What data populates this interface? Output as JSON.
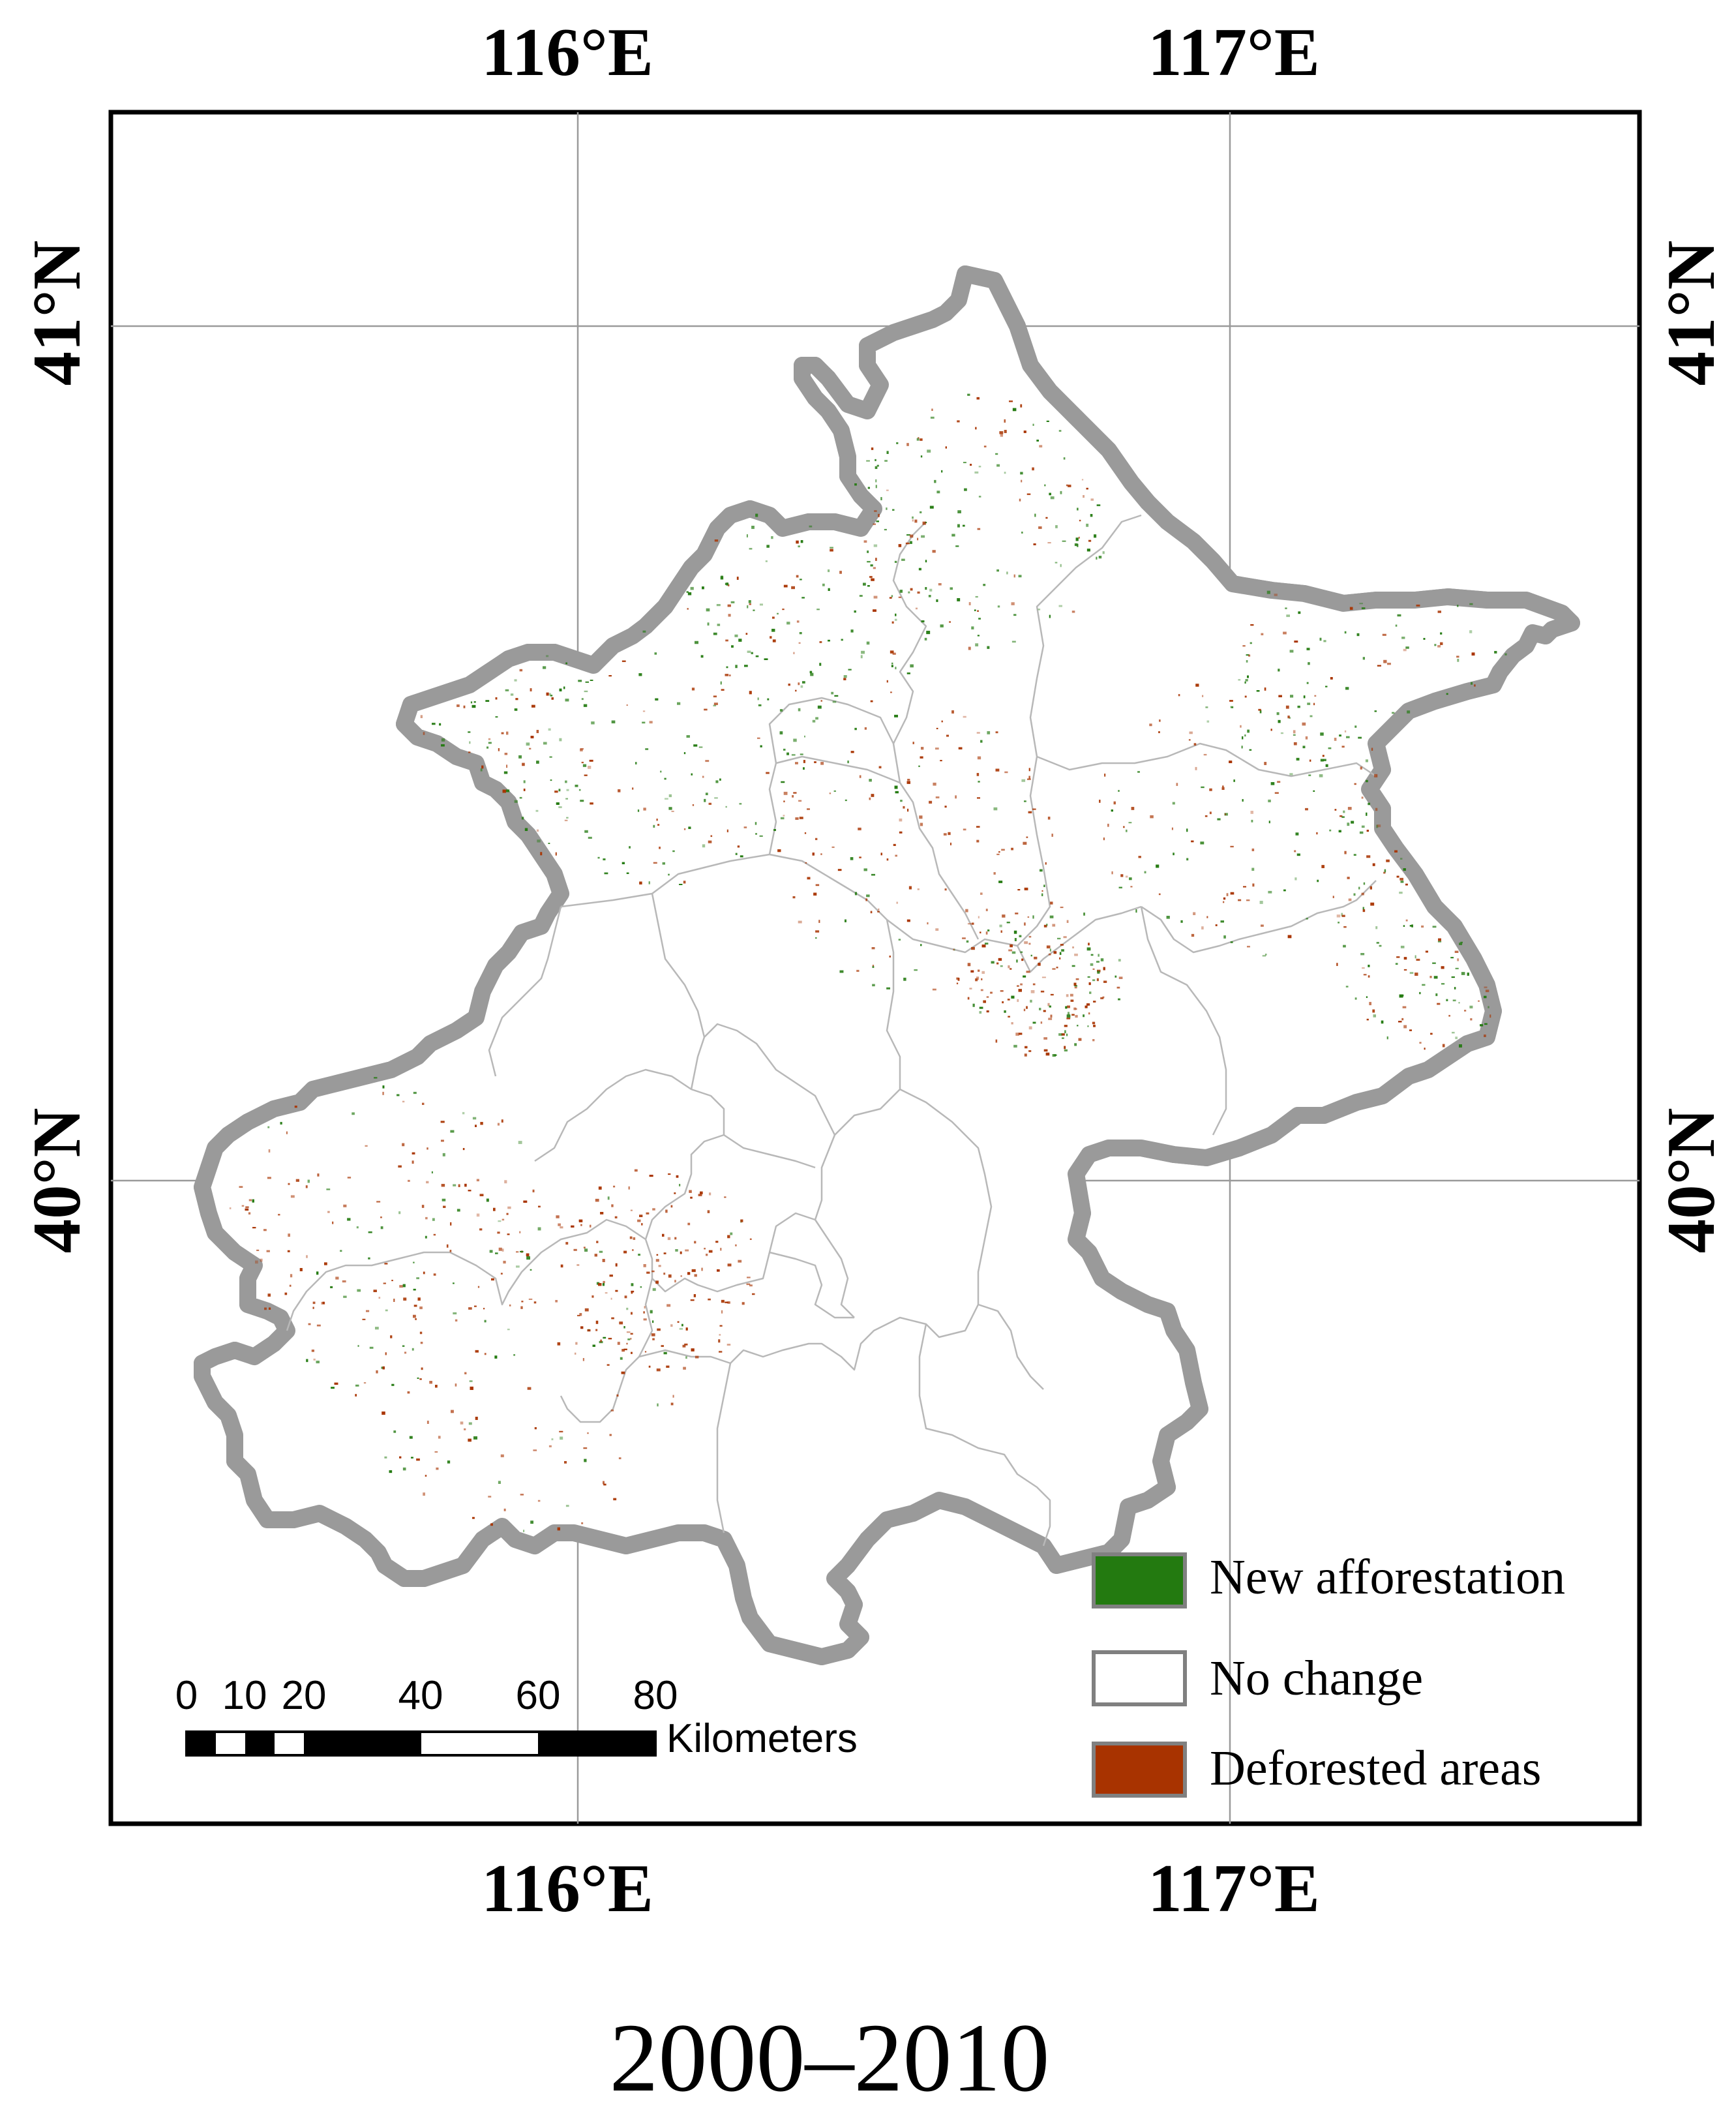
{
  "map": {
    "graticule": {
      "top_labels": [
        "116°E",
        "117°E"
      ],
      "bottom_labels": [
        "116°E",
        "117°E"
      ],
      "left_labels": [
        "41°N",
        "40°N"
      ],
      "right_labels": [
        "41°N",
        "40°N"
      ]
    },
    "legend": {
      "items": [
        {
          "label": "New afforestation",
          "color": "#237a10"
        },
        {
          "label": "No change",
          "color": "#ffffff"
        },
        {
          "label": "Deforested areas",
          "color": "#a83300"
        }
      ]
    },
    "scale_bar": {
      "ticks": [
        "0",
        "10",
        "20",
        "40",
        "60",
        "80"
      ],
      "unit": "Kilometers"
    },
    "caption": "2000–2010",
    "colors": {
      "boundary": "#000000",
      "boundary_halo": "#9a9a9a",
      "district_lines": "#b8b8b8",
      "graticule": "#9a9a9a",
      "afforestation": "#237a10",
      "deforestation": "#a83300"
    }
  }
}
